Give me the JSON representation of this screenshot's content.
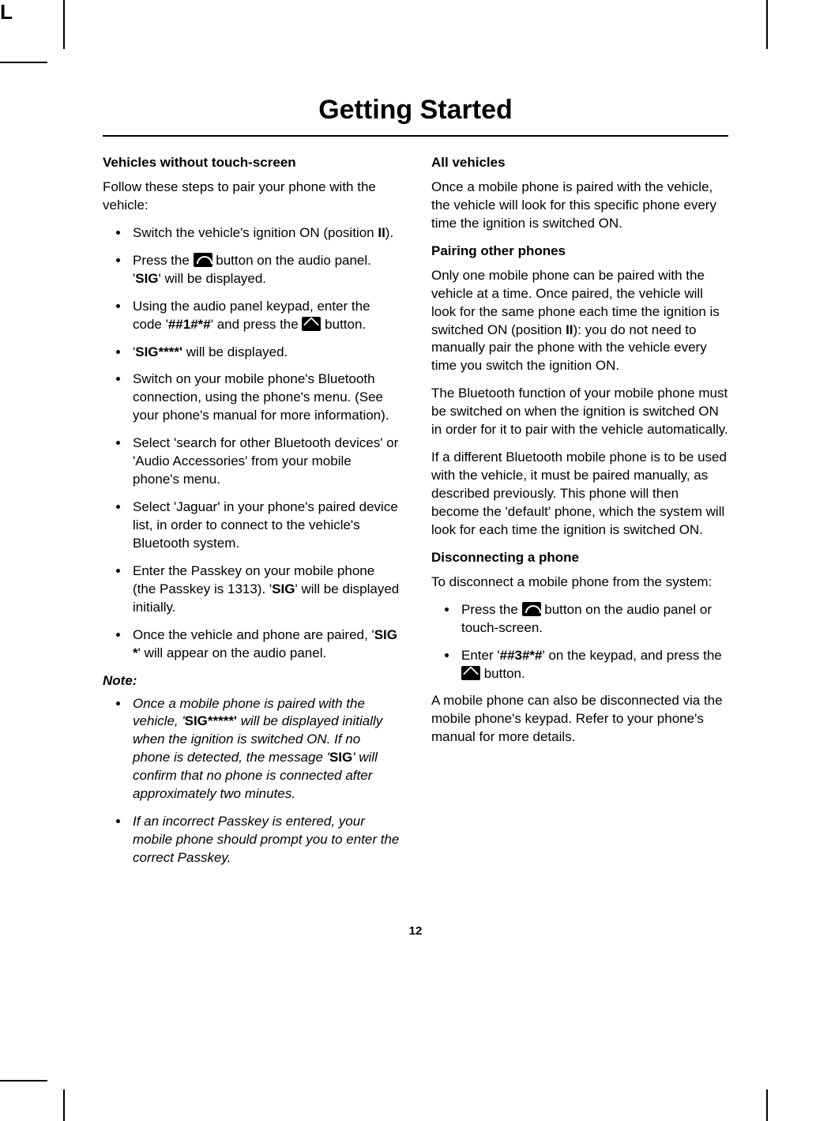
{
  "corner": "L",
  "title": "Getting Started",
  "page_number": "12",
  "left": {
    "heading": "Vehicles without touch-screen",
    "intro": "Follow these steps to pair your phone with the vehicle:",
    "items": {
      "i1": {
        "a": "Switch the vehicle's ignition ON (position ",
        "b": "II",
        "c": ")."
      },
      "i2": {
        "a": "Press the ",
        "b": " button on the audio panel. '",
        "sig": "SIG",
        "c": "' will be displayed."
      },
      "i3": {
        "a": "Using the audio panel keypad, enter the code '",
        "code": "##1#*#",
        "b": "' and press the ",
        "c": " button."
      },
      "i4": {
        "a": "'",
        "sig": "SIG****'",
        "b": " will be displayed."
      },
      "i5": "Switch on your mobile phone's Bluetooth connection, using the phone's menu. (See your phone's manual for more information).",
      "i6": "Select 'search for other Bluetooth devices' or 'Audio Accessories' from your mobile phone's menu.",
      "i7": "Select 'Jaguar' in your phone's paired device list, in order to connect to the vehicle's Bluetooth system.",
      "i8": {
        "a": "Enter the Passkey on your mobile phone (the Passkey is 1313). '",
        "sig": "SIG",
        "b": "' will be displayed initially."
      },
      "i9": {
        "a": "Once the vehicle and phone are paired, '",
        "sig": "SIG *",
        "b": "' will appear on the audio panel."
      }
    },
    "note_label": "Note:",
    "notes": {
      "n1": {
        "a": "Once a mobile phone is paired with the vehicle, '",
        "sig": "SIG*****'",
        "b": " will be displayed initially when the ignition is switched ON. If no phone is detected, the message '",
        "sig2": "SIG",
        "c": "' will confirm that no phone is connected after approximately two minutes."
      },
      "n2": "If an incorrect Passkey is entered, your mobile phone should prompt you to enter the correct Passkey."
    }
  },
  "right": {
    "h_all": "All vehicles",
    "p_all": "Once a mobile phone is paired with the vehicle, the vehicle will look for this specific phone every time the ignition is switched ON.",
    "h_other": "Pairing other phones",
    "p_other1": {
      "a": "Only one mobile phone can be paired with the vehicle at a time. Once paired, the vehicle will look for the same phone each time the ignition is switched ON (position ",
      "b": "II",
      "c": "): you do not need to manually pair the phone with the vehicle every time you switch the ignition ON."
    },
    "p_other2": "The Bluetooth function of your mobile phone must be switched on when the ignition is switched ON in order for it to pair with the vehicle automatically.",
    "p_other3": "If a different Bluetooth mobile phone is to be used with the vehicle, it must be paired manually, as described previously. This phone will then become the 'default' phone, which the system will look for each time the ignition is switched ON.",
    "h_disc": "Disconnecting a phone",
    "p_disc": "To disconnect a mobile phone from the system:",
    "d1": {
      "a": "Press the ",
      "b": " button on the audio panel or touch-screen."
    },
    "d2": {
      "a": "Enter '",
      "code": "##3#*#",
      "b": "' on the keypad, and press the ",
      "c": " button."
    },
    "p_end": "A mobile phone can also be disconnected via the mobile phone's keypad. Refer to your phone's manual for more details."
  }
}
